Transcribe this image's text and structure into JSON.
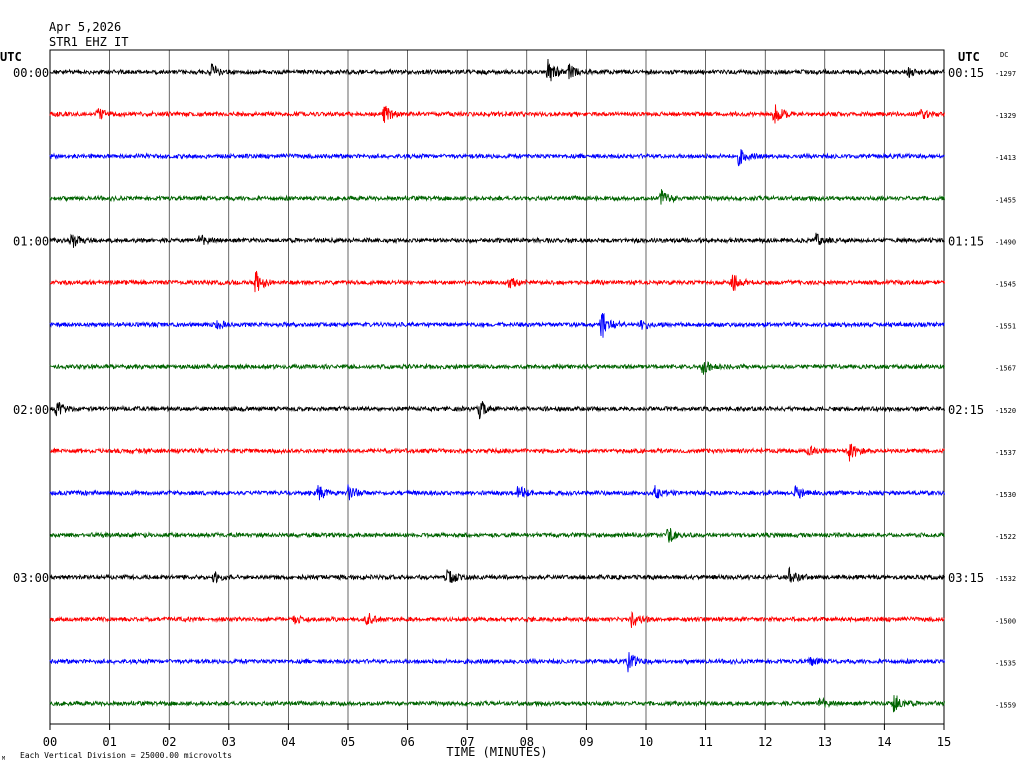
{
  "header": {
    "date": "Apr 5,2026",
    "station": "STR1 EHZ IT"
  },
  "left_axis_title": "UTC",
  "right_axis_title": "UTC",
  "dc_label": "DC",
  "footer": {
    "division_note": "Each Vertical Division = 25000.00 microvolts",
    "tiny_mark": "M"
  },
  "trace_colors": [
    "#000000",
    "#ff0000",
    "#0000ff",
    "#006400"
  ],
  "chart_data": {
    "type": "line",
    "xlabel": "TIME (MINUTES)",
    "xlim": [
      0,
      15
    ],
    "x_ticks": [
      "00",
      "01",
      "02",
      "03",
      "04",
      "05",
      "06",
      "07",
      "08",
      "09",
      "10",
      "11",
      "12",
      "13",
      "14",
      "15"
    ],
    "rows": [
      {
        "left_label": "00:00",
        "right_label": "00:15",
        "dc": "-1297",
        "events": [
          {
            "t": 2.7,
            "a": 7
          },
          {
            "t": 8.35,
            "a": 14
          },
          {
            "t": 8.7,
            "a": 7
          },
          {
            "t": 14.4,
            "a": 4
          }
        ]
      },
      {
        "left_label": "",
        "right_label": "",
        "dc": "-1329",
        "events": [
          {
            "t": 0.8,
            "a": 5
          },
          {
            "t": 5.6,
            "a": 9
          },
          {
            "t": 12.15,
            "a": 10
          },
          {
            "t": 14.6,
            "a": 6
          }
        ]
      },
      {
        "left_label": "",
        "right_label": "",
        "dc": "-1413",
        "events": [
          {
            "t": 11.55,
            "a": 9
          }
        ]
      },
      {
        "left_label": "",
        "right_label": "",
        "dc": "-1455",
        "events": [
          {
            "t": 10.25,
            "a": 11
          }
        ]
      },
      {
        "left_label": "01:00",
        "right_label": "01:15",
        "dc": "-1490",
        "events": [
          {
            "t": 0.35,
            "a": 8
          },
          {
            "t": 2.5,
            "a": 6
          },
          {
            "t": 12.85,
            "a": 6
          }
        ]
      },
      {
        "left_label": "",
        "right_label": "",
        "dc": "-1545",
        "events": [
          {
            "t": 3.45,
            "a": 13
          },
          {
            "t": 7.7,
            "a": 5
          },
          {
            "t": 11.45,
            "a": 10
          }
        ]
      },
      {
        "left_label": "",
        "right_label": "",
        "dc": "-1551",
        "events": [
          {
            "t": 2.8,
            "a": 4
          },
          {
            "t": 9.25,
            "a": 18
          },
          {
            "t": 9.9,
            "a": 6
          }
        ]
      },
      {
        "left_label": "",
        "right_label": "",
        "dc": "-1567",
        "events": [
          {
            "t": 10.95,
            "a": 7
          }
        ]
      },
      {
        "left_label": "02:00",
        "right_label": "02:15",
        "dc": "-1520",
        "events": [
          {
            "t": 0.1,
            "a": 9
          },
          {
            "t": 7.2,
            "a": 9
          }
        ]
      },
      {
        "left_label": "",
        "right_label": "",
        "dc": "-1537",
        "events": [
          {
            "t": 13.4,
            "a": 10
          },
          {
            "t": 12.7,
            "a": 5
          }
        ]
      },
      {
        "left_label": "",
        "right_label": "",
        "dc": "-1530",
        "events": [
          {
            "t": 4.5,
            "a": 7
          },
          {
            "t": 5.0,
            "a": 8
          },
          {
            "t": 7.85,
            "a": 9
          },
          {
            "t": 10.15,
            "a": 7
          },
          {
            "t": 12.5,
            "a": 7
          }
        ]
      },
      {
        "left_label": "",
        "right_label": "",
        "dc": "-1522",
        "events": [
          {
            "t": 10.35,
            "a": 9
          }
        ]
      },
      {
        "left_label": "03:00",
        "right_label": "03:15",
        "dc": "-1532",
        "events": [
          {
            "t": 2.75,
            "a": 5
          },
          {
            "t": 6.65,
            "a": 11
          },
          {
            "t": 12.4,
            "a": 9
          }
        ]
      },
      {
        "left_label": "",
        "right_label": "",
        "dc": "-1500",
        "events": [
          {
            "t": 5.3,
            "a": 9
          },
          {
            "t": 9.75,
            "a": 8
          },
          {
            "t": 4.1,
            "a": 4
          }
        ]
      },
      {
        "left_label": "",
        "right_label": "",
        "dc": "-1535",
        "events": [
          {
            "t": 9.7,
            "a": 11
          },
          {
            "t": 12.75,
            "a": 5
          }
        ]
      },
      {
        "left_label": "",
        "right_label": "",
        "dc": "-1559",
        "events": [
          {
            "t": 14.15,
            "a": 12
          },
          {
            "t": 12.9,
            "a": 6
          }
        ]
      }
    ]
  }
}
